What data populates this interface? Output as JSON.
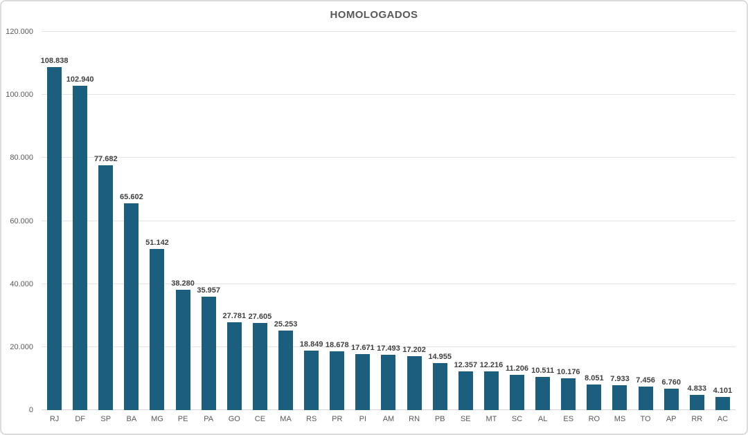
{
  "chart_data": {
    "type": "bar",
    "title": "HOMOLOGADOS",
    "categories": [
      "RJ",
      "DF",
      "SP",
      "BA",
      "MG",
      "PE",
      "PA",
      "GO",
      "CE",
      "MA",
      "RS",
      "PR",
      "PI",
      "AM",
      "RN",
      "PB",
      "SE",
      "MT",
      "SC",
      "AL",
      "ES",
      "RO",
      "MS",
      "TO",
      "AP",
      "RR",
      "AC"
    ],
    "values": [
      108838,
      102940,
      77682,
      65602,
      51142,
      38280,
      35957,
      27781,
      27605,
      25253,
      18849,
      18678,
      17671,
      17493,
      17202,
      14955,
      12357,
      12216,
      11206,
      10511,
      10176,
      8051,
      7933,
      7456,
      6760,
      4833,
      4101
    ],
    "value_labels": [
      "108.838",
      "102.940",
      "77.682",
      "65.602",
      "51.142",
      "38.280",
      "35.957",
      "27.781",
      "27.605",
      "25.253",
      "18.849",
      "18.678",
      "17.671",
      "17.493",
      "17.202",
      "14.955",
      "12.357",
      "12.216",
      "11.206",
      "10.511",
      "10.176",
      "8.051",
      "7.933",
      "7.456",
      "6.760",
      "4.833",
      "4.101"
    ],
    "y_ticks": [
      {
        "label": "0",
        "value": 0
      },
      {
        "label": "20.000",
        "value": 20000
      },
      {
        "label": "40.000",
        "value": 40000
      },
      {
        "label": "60.000",
        "value": 60000
      },
      {
        "label": "80.000",
        "value": 80000
      },
      {
        "label": "100.000",
        "value": 100000
      },
      {
        "label": "120.000",
        "value": 120000
      }
    ],
    "ylim": [
      0,
      120000
    ],
    "xlabel": "",
    "ylabel": "",
    "grid": true,
    "legend": false,
    "colors": {
      "bar": "#1B5E7D",
      "gridline": "#E3E3E3",
      "axis_line": "#D5D5D5",
      "title": "#595959",
      "tick_label": "#595959",
      "value_label": "#404040",
      "frame_border": "#DCDCDC"
    }
  }
}
